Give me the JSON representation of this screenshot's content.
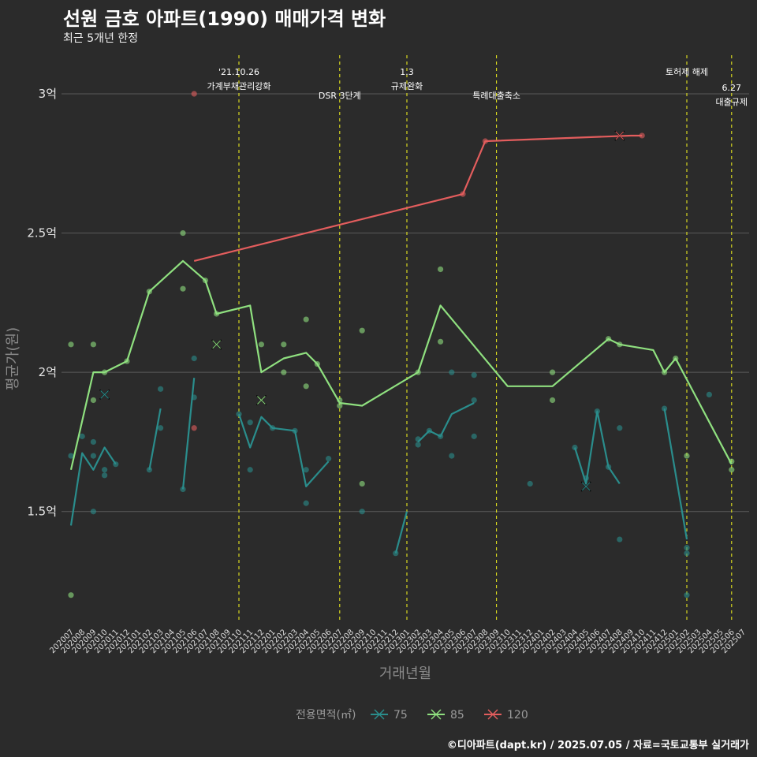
{
  "title": "선원 금호 아파트(1990) 매매가격 변화",
  "subtitle": "최근 5개년 한정",
  "caption": "©디아파트(dapt.kr) / 2025.07.05 / 자료=국토교통부 실거래가",
  "chart_data": {
    "type": "line",
    "xlabel": "거래년월",
    "ylabel": "평균가(원)",
    "ylim": [
      1.1,
      3.15
    ],
    "yticks": [
      {
        "v": 1.5,
        "label": "1.5억"
      },
      {
        "v": 2.0,
        "label": "2억"
      },
      {
        "v": 2.5,
        "label": "2.5억"
      },
      {
        "v": 3.0,
        "label": "3억"
      }
    ],
    "categories": [
      "202007",
      "202008",
      "202009",
      "202010",
      "202011",
      "202012",
      "202101",
      "202102",
      "202103",
      "202104",
      "202105",
      "202106",
      "202107",
      "202108",
      "202109",
      "202110",
      "202111",
      "202112",
      "202201",
      "202202",
      "202203",
      "202204",
      "202205",
      "202206",
      "202207",
      "202208",
      "202209",
      "202210",
      "202211",
      "202212",
      "202301",
      "202302",
      "202303",
      "202304",
      "202305",
      "202306",
      "202307",
      "202308",
      "202309",
      "202310",
      "202311",
      "202312",
      "202401",
      "202402",
      "202403",
      "202404",
      "202405",
      "202406",
      "202407",
      "202408",
      "202409",
      "202410",
      "202411",
      "202412",
      "202501",
      "202502",
      "202503",
      "202504",
      "202505",
      "202506",
      "202507"
    ],
    "events": [
      {
        "cat": "202110",
        "lines": [
          "'21.10.26",
          "가계부채관리강화"
        ],
        "level": 1
      },
      {
        "cat": "202207",
        "lines": [
          "DSR 3단계"
        ],
        "level": 2
      },
      {
        "cat": "202301",
        "lines": [
          "1.3",
          "규제완화"
        ],
        "level": 1
      },
      {
        "cat": "202309",
        "lines": [
          "특례대출축소"
        ],
        "level": 2
      },
      {
        "cat": "202502",
        "lines": [
          "토허제 해제"
        ],
        "level": 1
      },
      {
        "cat": "202506",
        "lines": [
          "6.27",
          "대출규제"
        ],
        "level": 3
      }
    ],
    "series": [
      {
        "name": "75",
        "color": "#2a8d8c",
        "segments": [
          [
            [
              "202007",
              1.45
            ],
            [
              "202008",
              1.71
            ],
            [
              "202009",
              1.65
            ],
            [
              "202010",
              1.73
            ],
            [
              "202011",
              1.67
            ]
          ],
          [
            [
              "202102",
              1.65
            ],
            [
              "202103",
              1.87
            ]
          ],
          [
            [
              "202105",
              1.58
            ],
            [
              "202106",
              1.98
            ]
          ],
          [
            [
              "202110",
              1.85
            ],
            [
              "202111",
              1.73
            ],
            [
              "202112",
              1.84
            ],
            [
              "202201",
              1.8
            ],
            [
              "202203",
              1.79
            ],
            [
              "202204",
              1.59
            ],
            [
              "202206",
              1.68
            ]
          ],
          [
            [
              "202212",
              1.35
            ],
            [
              "202301",
              1.5
            ]
          ],
          [
            [
              "202302",
              1.75
            ],
            [
              "202303",
              1.79
            ],
            [
              "202304",
              1.77
            ],
            [
              "202305",
              1.85
            ],
            [
              "202307",
              1.89
            ]
          ],
          [
            [
              "202404",
              1.73
            ],
            [
              "202405",
              1.6
            ],
            [
              "202406",
              1.86
            ],
            [
              "202407",
              1.66
            ],
            [
              "202408",
              1.6
            ]
          ],
          [
            [
              "202412",
              1.87
            ],
            [
              "202502",
              1.4
            ]
          ]
        ],
        "points": [
          [
            "202007",
            1.7
          ],
          [
            "202008",
            1.77
          ],
          [
            "202009",
            1.75
          ],
          [
            "202009",
            1.7
          ],
          [
            "202010",
            1.65
          ],
          [
            "202010",
            1.63
          ],
          [
            "202011",
            1.67
          ],
          [
            "202009",
            1.5
          ],
          [
            "202102",
            1.65
          ],
          [
            "202103",
            1.94
          ],
          [
            "202103",
            1.8
          ],
          [
            "202105",
            1.58
          ],
          [
            "202106",
            2.05
          ],
          [
            "202106",
            1.91
          ],
          [
            "202110",
            1.85
          ],
          [
            "202111",
            1.82
          ],
          [
            "202111",
            1.65
          ],
          [
            "202201",
            1.8
          ],
          [
            "202203",
            1.79
          ],
          [
            "202204",
            1.65
          ],
          [
            "202204",
            1.53
          ],
          [
            "202206",
            1.69
          ],
          [
            "202209",
            1.5
          ],
          [
            "202212",
            1.35
          ],
          [
            "202302",
            1.74
          ],
          [
            "202302",
            1.76
          ],
          [
            "202303",
            1.79
          ],
          [
            "202304",
            1.77
          ],
          [
            "202305",
            2.0
          ],
          [
            "202305",
            1.7
          ],
          [
            "202307",
            1.9
          ],
          [
            "202307",
            1.99
          ],
          [
            "202307",
            1.77
          ],
          [
            "202312",
            1.6
          ],
          [
            "202404",
            1.73
          ],
          [
            "202405",
            1.62
          ],
          [
            "202406",
            1.86
          ],
          [
            "202407",
            1.66
          ],
          [
            "202408",
            1.8
          ],
          [
            "202408",
            1.4
          ],
          [
            "202412",
            1.87
          ],
          [
            "202502",
            1.37
          ],
          [
            "202502",
            1.35
          ],
          [
            "202502",
            1.2
          ],
          [
            "202504",
            1.92
          ]
        ],
        "crosses": [
          [
            "202010",
            1.92
          ],
          [
            "202405",
            1.59
          ]
        ]
      },
      {
        "name": "85",
        "color": "#8fe07f",
        "segments": [
          [
            [
              "202007",
              1.65
            ],
            [
              "202009",
              2.0
            ],
            [
              "202010",
              2.0
            ],
            [
              "202012",
              2.04
            ],
            [
              "202102",
              2.29
            ],
            [
              "202105",
              2.4
            ],
            [
              "202107",
              2.33
            ],
            [
              "202108",
              2.21
            ],
            [
              "202111",
              2.24
            ],
            [
              "202112",
              2.0
            ],
            [
              "202202",
              2.05
            ],
            [
              "202204",
              2.07
            ],
            [
              "202205",
              2.03
            ],
            [
              "202207",
              1.89
            ],
            [
              "202209",
              1.88
            ],
            [
              "202302",
              2.0
            ],
            [
              "202304",
              2.24
            ],
            [
              "202310",
              1.95
            ],
            [
              "202402",
              1.95
            ],
            [
              "202407",
              2.12
            ],
            [
              "202408",
              2.1
            ],
            [
              "202411",
              2.08
            ],
            [
              "202412",
              2.0
            ],
            [
              "202501",
              2.05
            ],
            [
              "202506",
              1.67
            ]
          ]
        ],
        "points": [
          [
            "202007",
            2.1
          ],
          [
            "202007",
            1.2
          ],
          [
            "202009",
            2.1
          ],
          [
            "202009",
            1.9
          ],
          [
            "202010",
            2.0
          ],
          [
            "202012",
            2.04
          ],
          [
            "202102",
            2.29
          ],
          [
            "202105",
            2.5
          ],
          [
            "202105",
            2.3
          ],
          [
            "202107",
            2.33
          ],
          [
            "202108",
            2.21
          ],
          [
            "202112",
            2.1
          ],
          [
            "202202",
            2.1
          ],
          [
            "202202",
            2.0
          ],
          [
            "202204",
            2.19
          ],
          [
            "202204",
            1.95
          ],
          [
            "202205",
            2.03
          ],
          [
            "202207",
            1.9
          ],
          [
            "202207",
            1.88
          ],
          [
            "202209",
            2.15
          ],
          [
            "202209",
            1.6
          ],
          [
            "202302",
            2.0
          ],
          [
            "202304",
            2.37
          ],
          [
            "202304",
            2.11
          ],
          [
            "202402",
            2.0
          ],
          [
            "202402",
            1.9
          ],
          [
            "202407",
            2.12
          ],
          [
            "202408",
            2.1
          ],
          [
            "202412",
            2.0
          ],
          [
            "202501",
            2.05
          ],
          [
            "202502",
            1.7
          ],
          [
            "202506",
            1.68
          ],
          [
            "202506",
            1.65
          ]
        ],
        "crosses": [
          [
            "202108",
            2.1
          ],
          [
            "202112",
            1.9
          ]
        ]
      },
      {
        "name": "120",
        "color": "#e35d5d",
        "segments": [
          [
            [
              "202106",
              2.4
            ],
            [
              "202306",
              2.64
            ],
            [
              "202308",
              2.83
            ],
            [
              "202409",
              2.85
            ],
            [
              "202410",
              2.85
            ]
          ]
        ],
        "points": [
          [
            "202106",
            3.0
          ],
          [
            "202106",
            1.8
          ],
          [
            "202306",
            2.64
          ],
          [
            "202308",
            2.83
          ],
          [
            "202410",
            2.85
          ]
        ],
        "crosses": [
          [
            "202408",
            2.85
          ]
        ]
      }
    ],
    "legend": {
      "title": "전용면적(㎡)",
      "position": "bottom"
    }
  }
}
